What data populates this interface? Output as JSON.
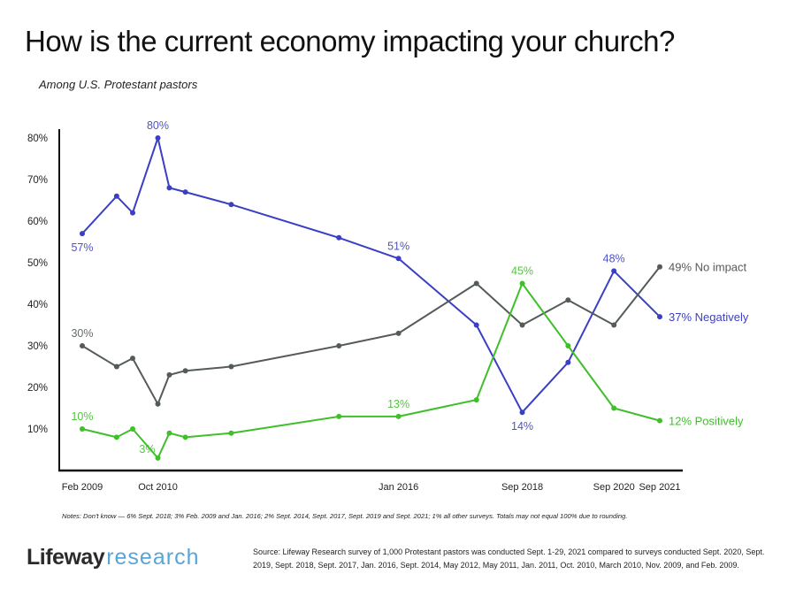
{
  "title": "How is the current economy impacting your church?",
  "subtitle": "Among U.S. Protestant pastors",
  "notes": "Notes: Don't know — 6% Sept. 2018; 3% Feb. 2009 and Jan. 2016; 2% Sept. 2014, Sept. 2017, Sept. 2019 and Sept. 2021; 1% all other surveys. Totals may not equal 100% due to rounding.",
  "logo": {
    "bold": "Lifeway",
    "light": "research"
  },
  "source": "Source: Lifeway Research survey of 1,000 Protestant pastors was conducted Sept. 1-29, 2021 compared to surveys conducted Sept. 2020, Sept. 2019, Sept. 2018, Sept. 2017, Jan. 2016, Sept. 2014, May 2012, May 2011, Jan. 2011, Oct. 2010, March 2010, Nov. 2009, and Feb. 2009.",
  "chart_data": {
    "type": "line",
    "title": "How is the current economy impacting your church?",
    "subtitle": "Among U.S. Protestant pastors",
    "xlabel": "",
    "ylabel": "",
    "x": [
      "Feb 2009",
      "Nov 2009",
      "Mar 2010",
      "Oct 2010",
      "Jan 2011",
      "May 2011",
      "May 2012",
      "Sep 2014",
      "Jan 2016",
      "Sep 2017",
      "Sep 2018",
      "Sep 2019",
      "Sep 2020",
      "Sep 2021"
    ],
    "x_decimal_years": [
      2009.1,
      2009.85,
      2010.2,
      2010.75,
      2011.0,
      2011.35,
      2012.35,
      2014.7,
      2016.0,
      2017.7,
      2018.7,
      2019.7,
      2020.7,
      2021.7
    ],
    "x_tick_labels": [
      {
        "label": "Feb 2009",
        "index": 0
      },
      {
        "label": "Oct 2010",
        "index": 3
      },
      {
        "label": "Jan 2016",
        "index": 8
      },
      {
        "label": "Sep 2018",
        "index": 10
      },
      {
        "label": "Sep 2020",
        "index": 12
      },
      {
        "label": "Sep 2021",
        "index": 13
      }
    ],
    "yticks": [
      "10%",
      "20%",
      "30%",
      "40%",
      "50%",
      "60%",
      "70%",
      "80%"
    ],
    "ytick_values": [
      10,
      20,
      30,
      40,
      50,
      60,
      70,
      80
    ],
    "ylim": [
      0,
      82
    ],
    "grid": false,
    "legend": "end-of-line labels (right)",
    "series": [
      {
        "name": "Negatively",
        "color": "#3a3fc4",
        "values": [
          57,
          66,
          62,
          80,
          68,
          67,
          64,
          56,
          51,
          35,
          14,
          26,
          48,
          37
        ],
        "annotations": [
          {
            "index": 0,
            "text": "57%",
            "pos": "below"
          },
          {
            "index": 3,
            "text": "80%",
            "pos": "above"
          },
          {
            "index": 8,
            "text": "51%",
            "pos": "above"
          },
          {
            "index": 10,
            "text": "14%",
            "pos": "below"
          },
          {
            "index": 12,
            "text": "48%",
            "pos": "above"
          }
        ],
        "end_label": "37%  Negatively"
      },
      {
        "name": "No impact",
        "color": "#555a5a",
        "values": [
          30,
          25,
          27,
          16,
          23,
          24,
          25,
          30,
          33,
          45,
          35,
          41,
          35,
          49
        ],
        "annotations": [
          {
            "index": 0,
            "text": "30%",
            "pos": "above"
          }
        ],
        "end_label": "49%  No impact"
      },
      {
        "name": "Positively",
        "color": "#3fbf2a",
        "values": [
          10,
          8,
          10,
          3,
          9,
          8,
          9,
          13,
          13,
          17,
          45,
          30,
          15,
          12
        ],
        "annotations": [
          {
            "index": 0,
            "text": "10%",
            "pos": "above"
          },
          {
            "index": 3,
            "text": "3%",
            "pos": "left"
          },
          {
            "index": 8,
            "text": "13%",
            "pos": "above"
          },
          {
            "index": 10,
            "text": "45%",
            "pos": "above"
          }
        ],
        "end_label": "12%  Positively"
      }
    ]
  }
}
